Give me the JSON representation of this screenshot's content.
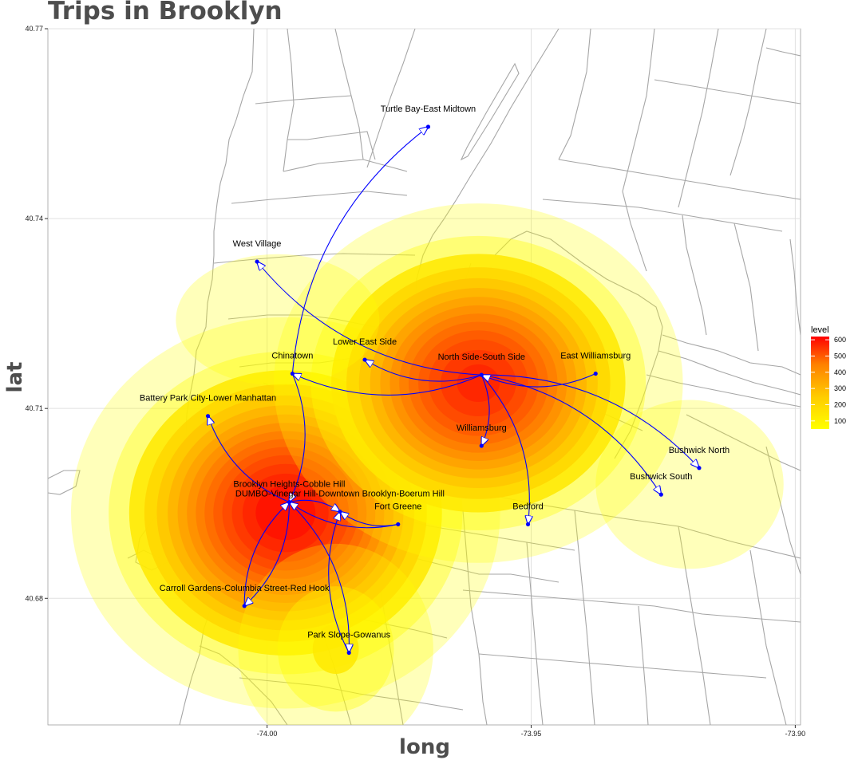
{
  "title": "Trips in Brooklyn",
  "chart_data": {
    "type": "map",
    "title": "Trips in Brooklyn",
    "xlabel": "long",
    "ylabel": "lat",
    "xlim": [
      -74.0415,
      -73.899
    ],
    "ylim": [
      40.66,
      40.77
    ],
    "x_ticks": [
      -74.0,
      -73.95,
      -73.9
    ],
    "x_tick_labels": [
      "-74.00",
      "-73.95",
      "-73.90"
    ],
    "y_ticks": [
      40.68,
      40.71,
      40.74,
      40.77
    ],
    "y_tick_labels": [
      "40.68",
      "40.71",
      "40.74",
      "40.77"
    ],
    "grid": true,
    "legend": {
      "title": "level",
      "position": "right",
      "breaks": [
        100,
        200,
        300,
        400,
        500,
        600
      ],
      "range": [
        50,
        620
      ],
      "low_color": "#ffff00",
      "high_color": "#ff0000"
    },
    "locations": [
      {
        "name": "Turtle Bay-East Midtown",
        "lon": -73.9695,
        "lat": 40.7545
      },
      {
        "name": "West Village",
        "lon": -74.0019,
        "lat": 40.7332
      },
      {
        "name": "Lower East Side",
        "lon": -73.9815,
        "lat": 40.7177
      },
      {
        "name": "Chinatown",
        "lon": -73.9952,
        "lat": 40.7155
      },
      {
        "name": "North Side-South Side",
        "lon": -73.9594,
        "lat": 40.7153
      },
      {
        "name": "East Williamsburg",
        "lon": -73.9378,
        "lat": 40.7155
      },
      {
        "name": "Battery Park City-Lower Manhattan",
        "lon": -74.0112,
        "lat": 40.7088
      },
      {
        "name": "Williamsburg",
        "lon": -73.9594,
        "lat": 40.7041
      },
      {
        "name": "Bushwick North",
        "lon": -73.9182,
        "lat": 40.7006
      },
      {
        "name": "Bushwick South",
        "lon": -73.9254,
        "lat": 40.6964
      },
      {
        "name": "Brooklyn Heights-Cobble Hill",
        "lon": -73.9958,
        "lat": 40.6952
      },
      {
        "name": "DUMBO-Vinegar Hill-Downtown Brooklyn-Boerum Hill",
        "lon": -73.9862,
        "lat": 40.6937
      },
      {
        "name": "Fort Greene",
        "lon": -73.9752,
        "lat": 40.6917
      },
      {
        "name": "Bedford",
        "lon": -73.9506,
        "lat": 40.6917
      },
      {
        "name": "Carroll Gardens-Columbia Street-Red Hook",
        "lon": -74.0043,
        "lat": 40.6788
      },
      {
        "name": "Park Slope-Gowanus",
        "lon": -73.9845,
        "lat": 40.6714
      }
    ],
    "trips": [
      {
        "from": "North Side-South Side",
        "to": "West Village"
      },
      {
        "from": "North Side-South Side",
        "to": "Lower East Side"
      },
      {
        "from": "North Side-South Side",
        "to": "Chinatown"
      },
      {
        "from": "North Side-South Side",
        "to": "Williamsburg"
      },
      {
        "from": "North Side-South Side",
        "to": "Bedford"
      },
      {
        "from": "North Side-South Side",
        "to": "Bushwick South"
      },
      {
        "from": "North Side-South Side",
        "to": "Bushwick North"
      },
      {
        "from": "East Williamsburg",
        "to": "North Side-South Side"
      },
      {
        "from": "Chinatown",
        "to": "Turtle Bay-East Midtown"
      },
      {
        "from": "Chinatown",
        "to": "Brooklyn Heights-Cobble Hill"
      },
      {
        "from": "Brooklyn Heights-Cobble Hill",
        "to": "Battery Park City-Lower Manhattan"
      },
      {
        "from": "Brooklyn Heights-Cobble Hill",
        "to": "DUMBO-Vinegar Hill-Downtown Brooklyn-Boerum Hill"
      },
      {
        "from": "Brooklyn Heights-Cobble Hill",
        "to": "Carroll Gardens-Columbia Street-Red Hook"
      },
      {
        "from": "Brooklyn Heights-Cobble Hill",
        "to": "Park Slope-Gowanus"
      },
      {
        "from": "Fort Greene",
        "to": "Brooklyn Heights-Cobble Hill"
      },
      {
        "from": "Fort Greene",
        "to": "DUMBO-Vinegar Hill-Downtown Brooklyn-Boerum Hill"
      },
      {
        "from": "Carroll Gardens-Columbia Street-Red Hook",
        "to": "Brooklyn Heights-Cobble Hill"
      },
      {
        "from": "Park Slope-Gowanus",
        "to": "DUMBO-Vinegar Hill-Downtown Brooklyn-Boerum Hill"
      }
    ],
    "density_peaks": [
      {
        "lon": -73.9965,
        "lat": 40.6935,
        "level": 620,
        "spread_lon": 0.0155,
        "spread_lat": 0.0118
      },
      {
        "lon": -73.96,
        "lat": 40.714,
        "level": 560,
        "spread_lon": 0.015,
        "spread_lat": 0.011
      },
      {
        "lon": -73.92,
        "lat": 40.698,
        "level": 60,
        "spread_lon": 0.012,
        "spread_lat": 0.009
      },
      {
        "lon": -73.987,
        "lat": 40.672,
        "level": 110,
        "spread_lon": 0.01,
        "spread_lat": 0.009
      },
      {
        "lon": -73.998,
        "lat": 40.724,
        "level": 60,
        "spread_lon": 0.013,
        "spread_lat": 0.007
      }
    ],
    "colors": {
      "arrow": "#0000ff",
      "map_lines": "#a6a6a6",
      "grid": "#e0e0e0",
      "title": "#4d4d4d"
    }
  }
}
